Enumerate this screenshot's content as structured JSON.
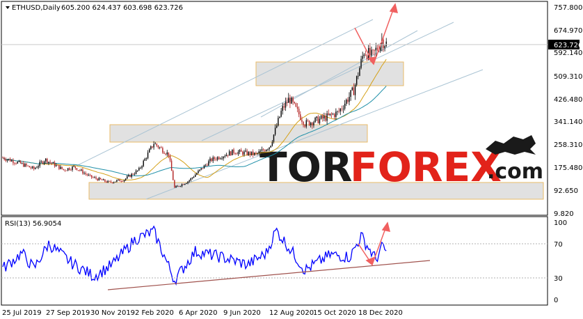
{
  "header": {
    "symbol": "ETHUSD,Daily",
    "ohlc": "605.200 624.437 603.698 623.726"
  },
  "price_panel": {
    "current_price_label": "623.726",
    "y_ticks": [
      "757.800",
      "674.970",
      "592.140",
      "509.310",
      "426.480",
      "341.140",
      "258.310",
      "175.480",
      "92.650",
      "9.820"
    ]
  },
  "rsi_panel": {
    "label": "RSI(13) 56.9054",
    "y_ticks": [
      "100",
      "70",
      "30",
      "0"
    ]
  },
  "x_axis": {
    "date_labels": [
      "25 Jul 2019",
      "27 Sep 2019",
      "30 Nov 2019",
      "2 Feb 2020",
      "6 Apr 2020",
      "9 Jun 2020",
      "12 Aug 2020",
      "15 Oct 2020",
      "18 Dec 2020"
    ]
  },
  "watermark": {
    "brand_dark": "TOR",
    "brand_red": "FOREX",
    "brand_suffix": ".com"
  },
  "colors": {
    "bull_candle": "#000000",
    "bear_candle": "#b22222",
    "ma_fast": "#d4a017",
    "ma_slow": "#1e8fa8",
    "rsi_line": "#0000ff",
    "rsi_trend": "#a0524d",
    "arrow": "#f06060",
    "channel": "#aac4d4",
    "zone_fill": "#e0e0e0",
    "zone_border": "#e8b860",
    "logo_red": "#e2231a",
    "logo_dark": "#1a1a1a"
  },
  "chart_data": [
    {
      "type": "candlestick",
      "title": "ETHUSD,Daily",
      "ylim": [
        9.82,
        757.8
      ],
      "x_range": [
        "2019-07-25",
        "2021-01-05"
      ],
      "close_path": [
        {
          "x": "2019-07-25",
          "y": 218
        },
        {
          "x": "2019-08-15",
          "y": 200
        },
        {
          "x": "2019-09-05",
          "y": 178
        },
        {
          "x": "2019-09-20",
          "y": 212
        },
        {
          "x": "2019-10-15",
          "y": 175
        },
        {
          "x": "2019-10-30",
          "y": 185
        },
        {
          "x": "2019-11-20",
          "y": 150
        },
        {
          "x": "2019-12-15",
          "y": 130
        },
        {
          "x": "2020-01-05",
          "y": 140
        },
        {
          "x": "2020-01-25",
          "y": 175
        },
        {
          "x": "2020-02-14",
          "y": 270
        },
        {
          "x": "2020-03-05",
          "y": 230
        },
        {
          "x": "2020-03-13",
          "y": 110
        },
        {
          "x": "2020-04-01",
          "y": 135
        },
        {
          "x": "2020-05-01",
          "y": 210
        },
        {
          "x": "2020-06-01",
          "y": 240
        },
        {
          "x": "2020-07-01",
          "y": 230
        },
        {
          "x": "2020-07-20",
          "y": 260
        },
        {
          "x": "2020-08-05",
          "y": 390
        },
        {
          "x": "2020-08-15",
          "y": 430
        },
        {
          "x": "2020-09-05",
          "y": 340
        },
        {
          "x": "2020-10-01",
          "y": 360
        },
        {
          "x": "2020-10-20",
          "y": 380
        },
        {
          "x": "2020-11-10",
          "y": 460
        },
        {
          "x": "2020-11-24",
          "y": 600
        },
        {
          "x": "2020-12-05",
          "y": 580
        },
        {
          "x": "2020-12-18",
          "y": 640
        },
        {
          "x": "2020-12-25",
          "y": 623.726
        }
      ],
      "support_resistance_zones": [
        [
          475,
          560
        ],
        [
          290,
          335
        ],
        [
          65,
          110
        ]
      ],
      "moving_averages": [
        "fast",
        "slow"
      ]
    },
    {
      "type": "line",
      "title": "RSI(13) 56.9054",
      "ylim": [
        0,
        100
      ],
      "levels": [
        70,
        30
      ],
      "series": [
        {
          "name": "RSI(13)",
          "points": [
            {
              "x": "2019-07-25",
              "y": 40
            },
            {
              "x": "2019-08-20",
              "y": 60
            },
            {
              "x": "2019-09-05",
              "y": 40
            },
            {
              "x": "2019-09-25",
              "y": 72
            },
            {
              "x": "2019-10-25",
              "y": 48
            },
            {
              "x": "2019-11-25",
              "y": 30
            },
            {
              "x": "2019-12-20",
              "y": 45
            },
            {
              "x": "2020-01-20",
              "y": 78
            },
            {
              "x": "2020-02-14",
              "y": 88
            },
            {
              "x": "2020-03-13",
              "y": 25
            },
            {
              "x": "2020-04-10",
              "y": 62
            },
            {
              "x": "2020-05-15",
              "y": 55
            },
            {
              "x": "2020-06-20",
              "y": 45
            },
            {
              "x": "2020-07-15",
              "y": 60
            },
            {
              "x": "2020-07-28",
              "y": 90
            },
            {
              "x": "2020-08-20",
              "y": 60
            },
            {
              "x": "2020-09-05",
              "y": 38
            },
            {
              "x": "2020-10-10",
              "y": 58
            },
            {
              "x": "2020-11-05",
              "y": 55
            },
            {
              "x": "2020-11-20",
              "y": 82
            },
            {
              "x": "2020-12-10",
              "y": 52
            },
            {
              "x": "2020-12-20",
              "y": 70
            },
            {
              "x": "2020-12-25",
              "y": 56.9
            }
          ]
        }
      ]
    }
  ]
}
